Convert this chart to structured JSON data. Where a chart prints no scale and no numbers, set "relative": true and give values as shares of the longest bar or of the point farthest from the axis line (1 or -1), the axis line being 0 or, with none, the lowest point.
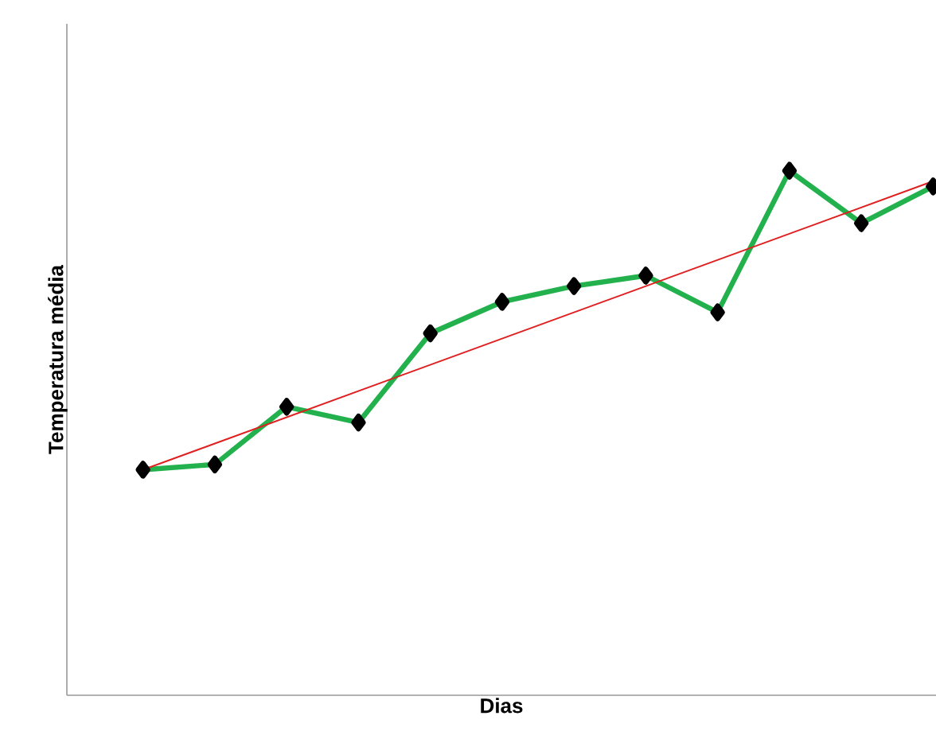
{
  "chart_data": {
    "type": "line",
    "relative": true,
    "xlabel": "Dias",
    "ylabel": "Temperatura média",
    "categories": [
      null,
      null,
      null,
      null,
      null,
      null,
      null,
      null,
      null,
      null,
      null,
      null
    ],
    "series": [
      {
        "color": "#22b14c",
        "marker": "diamond",
        "values": [
          0.43,
          0.44,
          0.55,
          0.52,
          0.69,
          0.75,
          0.78,
          0.8,
          0.73,
          1,
          0.9,
          0.97
        ]
      },
      {
        "color": "#e02020",
        "values": [
          0.43,
          null,
          null,
          null,
          null,
          null,
          null,
          null,
          null,
          null,
          null,
          0.98
        ]
      }
    ]
  }
}
